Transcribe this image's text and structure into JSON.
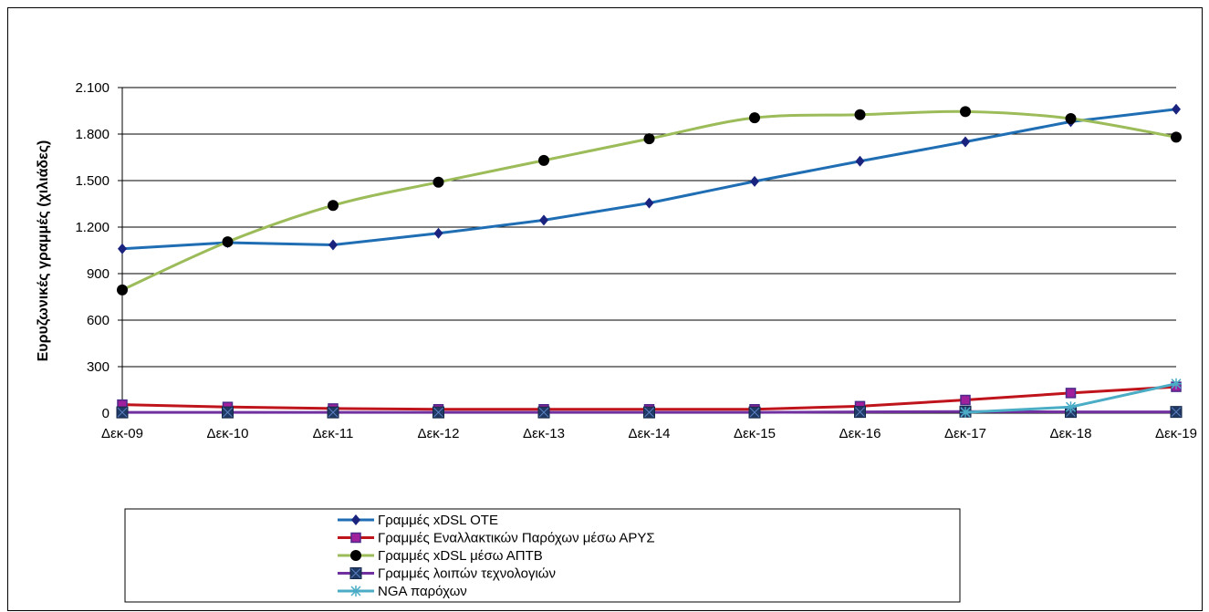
{
  "chart_data": {
    "type": "line",
    "ylabel": "Ευρυζωνικές γραμμές (χιλιάδες)",
    "xlabel": "",
    "ylim": [
      0,
      2100
    ],
    "yticks": [
      0,
      300,
      600,
      900,
      1200,
      1500,
      1800,
      2100
    ],
    "ytick_labels": [
      "0",
      "300",
      "600",
      "900",
      "1.200",
      "1.500",
      "1.800",
      "2.100"
    ],
    "grid": true,
    "legend_position": "bottom",
    "categories": [
      "Δεκ-09",
      "Δεκ-10",
      "Δεκ-11",
      "Δεκ-12",
      "Δεκ-13",
      "Δεκ-14",
      "Δεκ-15",
      "Δεκ-16",
      "Δεκ-17",
      "Δεκ-18",
      "Δεκ-19"
    ],
    "series": [
      {
        "name": "Γραμμές xDSL ΟΤΕ",
        "color": "#1f6eb4",
        "marker": "diamond",
        "smooth": false,
        "values": [
          1060,
          1100,
          1085,
          1160,
          1245,
          1355,
          1495,
          1625,
          1750,
          1880,
          1960
        ]
      },
      {
        "name": "Γραμμές Εναλλακτικών Παρόχων μέσω ΑΡΥΣ",
        "color": "#c0141c",
        "marker": "square-magenta",
        "smooth": false,
        "values": [
          55,
          40,
          30,
          25,
          25,
          25,
          25,
          45,
          85,
          130,
          170
        ]
      },
      {
        "name": "Γραμμές xDSL μέσω ΑΠΤΒ",
        "color": "#9cbb59",
        "marker": "circle",
        "smooth": true,
        "values": [
          795,
          1105,
          1340,
          1490,
          1630,
          1770,
          1905,
          1925,
          1945,
          1900,
          1780
        ]
      },
      {
        "name": "Γραμμές λοιπών τεχνολογιών",
        "color": "#7030a0",
        "marker": "square-x",
        "smooth": false,
        "values": [
          5,
          5,
          5,
          5,
          5,
          5,
          5,
          8,
          10,
          8,
          8
        ]
      },
      {
        "name": "NGA παρόχων",
        "color": "#4bacc6",
        "marker": "asterisk",
        "smooth": false,
        "values": [
          null,
          null,
          null,
          null,
          null,
          null,
          null,
          null,
          5,
          40,
          190
        ]
      }
    ]
  }
}
